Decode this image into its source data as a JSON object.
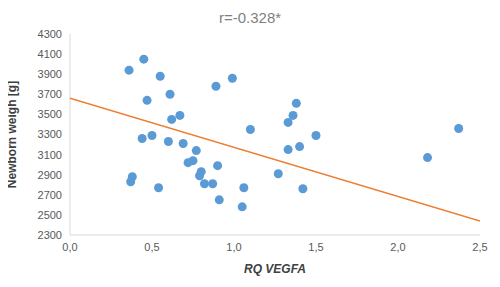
{
  "chart_data": {
    "type": "scatter",
    "title": "r=-0.328*",
    "x_label": "RQ VEGFA",
    "y_label": "Newborn weigh [g]",
    "x": [
      0.36,
      0.37,
      0.38,
      0.44,
      0.45,
      0.47,
      0.5,
      0.54,
      0.55,
      0.6,
      0.61,
      0.62,
      0.67,
      0.69,
      0.72,
      0.75,
      0.77,
      0.79,
      0.8,
      0.82,
      0.87,
      0.89,
      0.9,
      0.91,
      0.99,
      1.05,
      1.06,
      1.1,
      1.27,
      1.33,
      1.33,
      1.36,
      1.38,
      1.4,
      1.42,
      1.5,
      2.18,
      2.37
    ],
    "values": [
      3940,
      2830,
      2880,
      3260,
      4050,
      3640,
      3290,
      2770,
      3880,
      3230,
      3700,
      3450,
      3490,
      3210,
      3020,
      3040,
      3140,
      2890,
      2930,
      2810,
      2810,
      3780,
      2990,
      2650,
      3860,
      2580,
      2770,
      3350,
      2910,
      3420,
      3150,
      3490,
      3610,
      3180,
      2760,
      3290,
      3070,
      3360
    ],
    "color": "#5b9bd5",
    "trend_line": {
      "x": [
        0,
        2.5
      ],
      "values": [
        3660,
        2440
      ],
      "color": "#ed7d31"
    },
    "xlim": [
      0,
      2.5
    ],
    "xticks": [
      {
        "value": 0,
        "label": "0,0"
      },
      {
        "value": 0.5,
        "label": "0,5"
      },
      {
        "value": 1,
        "label": "1,0"
      },
      {
        "value": 1.5,
        "label": "1,5"
      },
      {
        "value": 2,
        "label": "2,0"
      },
      {
        "value": 2.5,
        "label": "2,5"
      }
    ],
    "ylim": [
      2300,
      4300
    ],
    "yticks": [
      2300,
      2500,
      2700,
      2900,
      3100,
      3300,
      3500,
      3700,
      3900,
      4100,
      4300
    ],
    "grid": false
  }
}
